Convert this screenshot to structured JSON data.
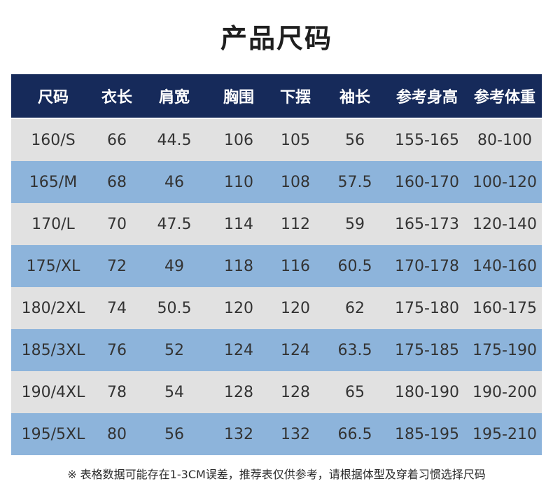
{
  "title": "产品尺码",
  "columns": [
    "尺码",
    "衣长",
    "肩宽",
    "胸围",
    "下摆",
    "袖长",
    "参考身高",
    "参考体重"
  ],
  "rows": [
    [
      "160/S",
      "66",
      "44.5",
      "106",
      "105",
      "56",
      "155-165",
      "80-100"
    ],
    [
      "165/M",
      "68",
      "46",
      "110",
      "108",
      "57.5",
      "160-170",
      "100-120"
    ],
    [
      "170/L",
      "70",
      "47.5",
      "114",
      "112",
      "59",
      "165-173",
      "120-140"
    ],
    [
      "175/XL",
      "72",
      "49",
      "118",
      "116",
      "60.5",
      "170-178",
      "140-160"
    ],
    [
      "180/2XL",
      "74",
      "50.5",
      "120",
      "120",
      "62",
      "175-180",
      "160-175"
    ],
    [
      "185/3XL",
      "76",
      "52",
      "124",
      "124",
      "63.5",
      "175-185",
      "175-190"
    ],
    [
      "190/4XL",
      "78",
      "54",
      "128",
      "128",
      "65",
      "180-190",
      "190-200"
    ],
    [
      "195/5XL",
      "80",
      "56",
      "132",
      "132",
      "66.5",
      "185-195",
      "195-210"
    ]
  ],
  "note": "※ 表格数据可能存在1-3CM误差，推荐表仅供参考，请根据体型及穿着习惯选择尺码",
  "colors": {
    "header_bg": "#162a5a",
    "row_light": "#e1e1e1",
    "row_blue": "#8db4db"
  }
}
